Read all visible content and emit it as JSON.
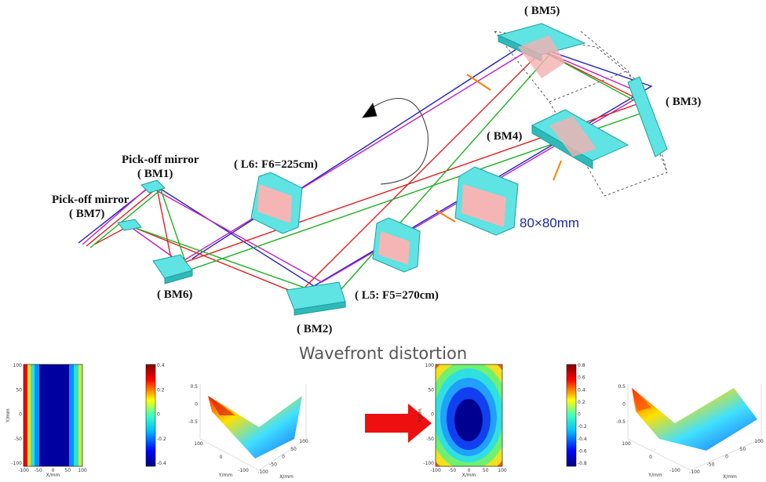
{
  "labels": {
    "bm5": "( BM5)",
    "bm3": "( BM3)",
    "bm4": "( BM4)",
    "pickoff1": "Pick-off mirror",
    "bm1": "( BM1)",
    "pickoff2": "Pick-off mirror",
    "bm7": "( BM7)",
    "l6": "( L6:  F6=225cm)",
    "aperture": "80×80mm",
    "bm6": "( BM6)",
    "l5": "( L5:  F5=270cm)",
    "bm2": "( BM2)",
    "wavefront": "Wavefront distortion"
  },
  "plots": [
    {
      "y_ticks": [
        "100",
        "50",
        "0",
        "-50",
        "-100"
      ],
      "x_ticks": [
        "-100",
        "-50",
        "0",
        "50",
        "100"
      ],
      "colorbar_ticks": [
        "0.4",
        "0.2",
        "0",
        "-0.2",
        "-0.4"
      ],
      "y_label": "Y/mm",
      "x_label": "X/mm"
    },
    {
      "z_ticks": [
        "0.5",
        "0",
        "-0.5"
      ],
      "y_ticks": [
        "100",
        "0",
        "-100"
      ],
      "x_ticks": [
        "-100",
        "-50",
        "0",
        "50",
        "100"
      ],
      "y_label": "Y/mm",
      "x_label": "X/mm"
    },
    {
      "y_ticks": [
        "100",
        "50",
        "0",
        "-50",
        "-100"
      ],
      "x_ticks": [
        "-100",
        "-50",
        "0",
        "50",
        "100"
      ],
      "colorbar_ticks": [
        "0.8",
        "0.6",
        "0.4",
        "0.2",
        "0",
        "-0.2",
        "-0.4",
        "-0.6",
        "-0.8"
      ],
      "y_label": "Y/mm",
      "x_label": "X/mm"
    },
    {
      "z_ticks": [
        "0.5",
        "0",
        "-0.5"
      ],
      "y_ticks": [
        "100",
        "0",
        "-100"
      ],
      "x_ticks": [
        "-100",
        "-50",
        "0",
        "50",
        "100"
      ],
      "y_label": "Y/mm",
      "x_label": "X/mm"
    }
  ]
}
